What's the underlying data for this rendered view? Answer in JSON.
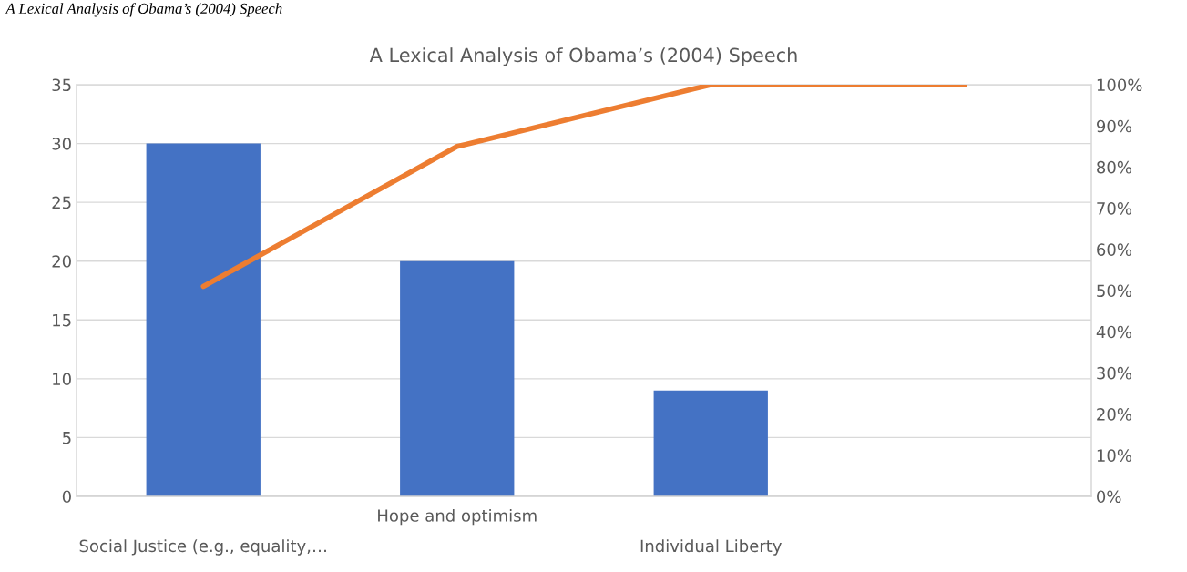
{
  "chart_data": {
    "type": "bar",
    "title": "A Lexical Analysis of Obama’s (2004) Speech",
    "annotations": [
      "A Lexical Analysis of Obama’s (2004) Speech"
    ],
    "categories": [
      "Social Justice (e.g., equality,…",
      "Hope and optimism",
      "Individual Liberty",
      null
    ],
    "series": [
      {
        "color": "#4472c4",
        "values": [
          30,
          20,
          9,
          0
        ]
      },
      {
        "type": "line",
        "axis": "y2",
        "color": "#ed7d31",
        "values": [
          51,
          85,
          100,
          100
        ]
      }
    ],
    "ylim": [
      0,
      35
    ],
    "yticks": [
      0,
      5,
      10,
      15,
      20,
      25,
      30,
      35
    ],
    "y2lim": [
      0,
      100
    ],
    "y2ticks": [
      {
        "value": 0,
        "label": "0%"
      },
      {
        "value": 10,
        "label": "10%"
      },
      {
        "value": 20,
        "label": "20%"
      },
      {
        "value": 30,
        "label": "30%"
      },
      {
        "value": 40,
        "label": "40%"
      },
      {
        "value": 50,
        "label": "50%"
      },
      {
        "value": 60,
        "label": "60%"
      },
      {
        "value": 70,
        "label": "70%"
      },
      {
        "value": 80,
        "label": "80%"
      },
      {
        "value": 90,
        "label": "90%"
      },
      {
        "value": 100,
        "label": "100%"
      }
    ],
    "grid": "y",
    "marker": "none",
    "line_style": "solid"
  }
}
